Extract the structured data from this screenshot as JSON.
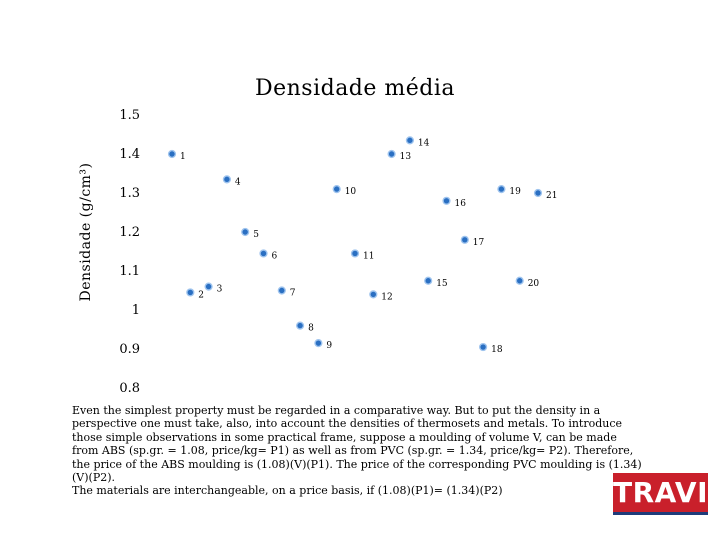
{
  "chart_data": {
    "type": "scatter",
    "title": "Densidade média",
    "ylabel": "Densidade (g/cm³)",
    "xlabel": "",
    "ylim": [
      0.8,
      1.5
    ],
    "yticks": [
      "1.5",
      "1.4",
      "1.3",
      "1.2",
      "1.1",
      "1",
      "0.9",
      "0.8"
    ],
    "grid": false,
    "legend": "none",
    "marker_color": "#2a6fc2",
    "points": [
      {
        "label": "1",
        "x": 1,
        "y": 1.4
      },
      {
        "label": "2",
        "x": 2,
        "y": 1.045
      },
      {
        "label": "3",
        "x": 3,
        "y": 1.06
      },
      {
        "label": "4",
        "x": 4,
        "y": 1.335
      },
      {
        "label": "5",
        "x": 5,
        "y": 1.2
      },
      {
        "label": "6",
        "x": 6,
        "y": 1.145
      },
      {
        "label": "7",
        "x": 7,
        "y": 1.05
      },
      {
        "label": "8",
        "x": 8,
        "y": 0.96
      },
      {
        "label": "9",
        "x": 9,
        "y": 0.915
      },
      {
        "label": "10",
        "x": 10,
        "y": 1.31
      },
      {
        "label": "11",
        "x": 11,
        "y": 1.145
      },
      {
        "label": "12",
        "x": 12,
        "y": 1.04
      },
      {
        "label": "13",
        "x": 13,
        "y": 1.4
      },
      {
        "label": "14",
        "x": 14,
        "y": 1.435
      },
      {
        "label": "15",
        "x": 15,
        "y": 1.075
      },
      {
        "label": "16",
        "x": 16,
        "y": 1.28
      },
      {
        "label": "17",
        "x": 17,
        "y": 1.18
      },
      {
        "label": "18",
        "x": 18,
        "y": 0.905
      },
      {
        "label": "19",
        "x": 19,
        "y": 1.31
      },
      {
        "label": "20",
        "x": 20,
        "y": 1.075
      },
      {
        "label": "21",
        "x": 21,
        "y": 1.3
      }
    ]
  },
  "text": {
    "paragraph1": "Even the simplest property must be regarded in a comparative way. But to put the density in a perspective one must take, also, into account the densities of thermosets and metals. To introduce those simple observations in some practical frame, suppose a moulding of volume V, can be made from ABS (sp.gr. = 1.08, price/kg= P1) as well as from PVC (sp.gr. = 1.34, price/kg= P2). Therefore, the price of the ABS moulding is (1.08)(V)(P1). The price of the corresponding PVC moulding is (1.34)(V)(P2).",
    "paragraph2": "The materials are interchangeable, on a price basis, if (1.08)(P1)= (1.34)(P2)"
  },
  "logo": {
    "text": "TRAVI",
    "color": "#c9202b"
  }
}
